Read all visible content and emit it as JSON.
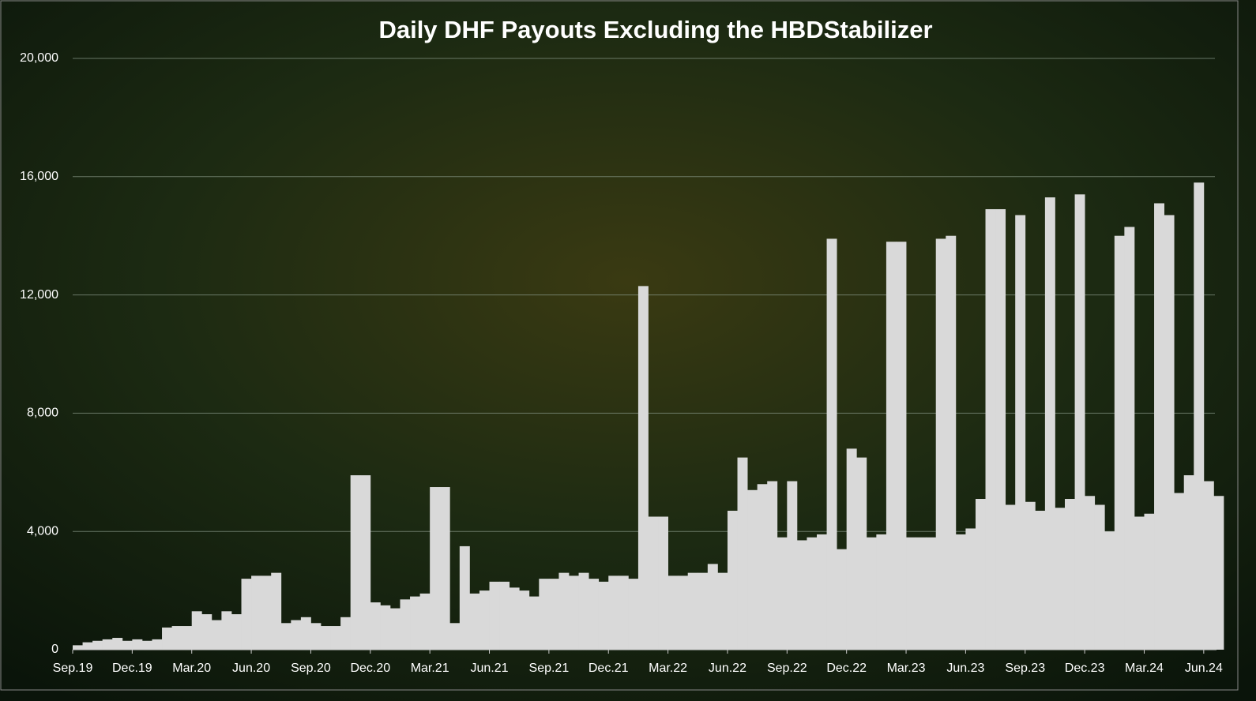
{
  "chart_data": {
    "type": "bar",
    "title": "Daily DHF Payouts Excluding the HBDStabilizer",
    "categories": [
      "Sep.19",
      null,
      null,
      null,
      null,
      null,
      "Dec.19",
      null,
      null,
      null,
      null,
      null,
      "Mar.20",
      null,
      null,
      null,
      null,
      null,
      "Jun.20",
      null,
      null,
      null,
      null,
      null,
      "Sep.20",
      null,
      null,
      null,
      null,
      null,
      "Dec.20",
      null,
      null,
      null,
      null,
      null,
      "Mar.21",
      null,
      null,
      null,
      null,
      null,
      "Jun.21",
      null,
      null,
      null,
      null,
      null,
      "Sep.21",
      null,
      null,
      null,
      null,
      null,
      "Dec.21",
      null,
      null,
      null,
      null,
      null,
      "Mar.22",
      null,
      null,
      null,
      null,
      null,
      "Jun.22",
      null,
      null,
      null,
      null,
      null,
      "Sep.22",
      null,
      null,
      null,
      null,
      null,
      "Dec.22",
      null,
      null,
      null,
      null,
      null,
      "Mar.23",
      null,
      null,
      null,
      null,
      null,
      "Jun.23",
      null,
      null,
      null,
      null,
      null,
      "Sep.23",
      null,
      null,
      null,
      null,
      null,
      "Dec.23",
      null,
      null,
      null,
      null,
      null,
      "Mar.24",
      null,
      null,
      null,
      null,
      null,
      "Jun.24",
      null
    ],
    "values": [
      150,
      250,
      300,
      350,
      400,
      300,
      350,
      300,
      350,
      750,
      800,
      800,
      1300,
      1200,
      1000,
      1300,
      1200,
      2400,
      2500,
      2500,
      2600,
      900,
      1000,
      1100,
      900,
      800,
      800,
      1100,
      5900,
      5900,
      1600,
      1500,
      1400,
      1700,
      1800,
      1900,
      5500,
      5500,
      900,
      3500,
      1900,
      2000,
      2300,
      2300,
      2100,
      2000,
      1800,
      2400,
      2400,
      2600,
      2500,
      2600,
      2400,
      2300,
      2500,
      2500,
      2400,
      12300,
      4500,
      4500,
      2500,
      2500,
      2600,
      2600,
      2900,
      2600,
      4700,
      6500,
      5400,
      5600,
      5700,
      3800,
      5700,
      3700,
      3800,
      3900,
      13900,
      3400,
      6800,
      6500,
      3800,
      3900,
      13800,
      13800,
      3800,
      3800,
      3800,
      13900,
      14000,
      3900,
      4100,
      5100,
      14900,
      14900,
      4900,
      14700,
      5000,
      4700,
      15300,
      4800,
      5100,
      15400,
      5200,
      4900,
      4000,
      14000,
      14300,
      4500,
      4600,
      15100,
      14700,
      5300,
      5900,
      15800,
      5700,
      5200
    ],
    "color": "#d9d9d9",
    "ylim": [
      0,
      20000
    ],
    "yticks": [
      0,
      {
        "value": 4000,
        "label": "4,000"
      },
      {
        "value": 8000,
        "label": "8,000"
      },
      {
        "value": 12000,
        "label": "12,000"
      },
      {
        "value": 16000,
        "label": "16,000"
      },
      {
        "value": 20000,
        "label": "20,000"
      }
    ],
    "grid": true
  }
}
